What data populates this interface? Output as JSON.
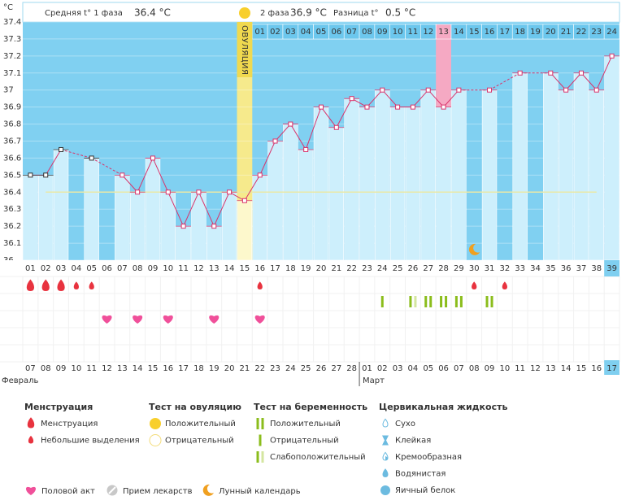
{
  "header": {
    "phase1_label": "Средняя t° 1 фаза",
    "phase1_value": "36.4 °C",
    "phase2_label": "2 фаза",
    "phase2_value": "36.9 °C",
    "diff_label": "Разница t°",
    "diff_value": "0.5 °C"
  },
  "chart_data": {
    "type": "line",
    "y_unit": "°C",
    "categories": [
      "01",
      "02",
      "03",
      "04",
      "05",
      "06",
      "07",
      "08",
      "09",
      "10",
      "11",
      "12",
      "13",
      "14",
      "15",
      "16",
      "17",
      "18",
      "19",
      "20",
      "21",
      "22",
      "23",
      "24",
      "25",
      "26",
      "27",
      "28",
      "29",
      "30",
      "31",
      "32",
      "33",
      "34",
      "35",
      "36",
      "37",
      "38",
      "39"
    ],
    "values": [
      36.5,
      36.5,
      36.65,
      null,
      36.6,
      null,
      36.5,
      36.4,
      36.6,
      36.4,
      36.2,
      36.4,
      36.2,
      36.4,
      36.35,
      36.5,
      36.7,
      36.8,
      36.65,
      36.9,
      36.78,
      36.95,
      36.9,
      37.0,
      36.9,
      36.9,
      37.0,
      36.9,
      37.0,
      null,
      37.0,
      null,
      37.1,
      null,
      37.1,
      37.0,
      37.1,
      37.0,
      37.2
    ],
    "color": "#d9336b",
    "ylim": [
      36,
      37.4
    ],
    "yticks": [
      36,
      36.1,
      36.2,
      36.3,
      36.4,
      36.5,
      36.6,
      36.7,
      36.8,
      36.9,
      37,
      37.1,
      37.2,
      37.3,
      37.4
    ],
    "grid": true,
    "coverline": 36.4,
    "ovulation": {
      "day": "15",
      "label": "ОВУЛЯЦИЯ"
    },
    "phase2_days": [
      "01",
      "02",
      "03",
      "04",
      "05",
      "06",
      "07",
      "08",
      "09",
      "10",
      "11",
      "12",
      "13",
      "14",
      "15",
      "16",
      "17",
      "18",
      "19",
      "20",
      "21",
      "22",
      "23",
      "24"
    ],
    "highlight_phase2_day": "13",
    "current_day": "39"
  },
  "markers": {
    "menstruation": [
      {
        "day": "01",
        "size": "heavy"
      },
      {
        "day": "02",
        "size": "heavy"
      },
      {
        "day": "03",
        "size": "heavy"
      },
      {
        "day": "04",
        "size": "light"
      },
      {
        "day": "05",
        "size": "light"
      },
      {
        "day": "16",
        "size": "light"
      },
      {
        "day": "30",
        "size": "light"
      },
      {
        "day": "32",
        "size": "light"
      }
    ],
    "pregnancy_tests": [
      {
        "day": "24",
        "result": "negative"
      },
      {
        "day": "26",
        "result": "weak"
      },
      {
        "day": "27",
        "result": "positive"
      },
      {
        "day": "28",
        "result": "positive"
      },
      {
        "day": "29",
        "result": "positive"
      },
      {
        "day": "31",
        "result": "positive"
      }
    ],
    "sex": [
      "06",
      "08",
      "10",
      "13",
      "16"
    ],
    "moon": [
      "30"
    ]
  },
  "calendar": [
    {
      "month": "Февраль",
      "dates": [
        {
          "label": "07",
          "weekend": true
        },
        {
          "label": "08",
          "weekend": true
        },
        {
          "label": "09",
          "weekend": false
        },
        {
          "label": "10",
          "weekend": false
        },
        {
          "label": "11",
          "weekend": false
        },
        {
          "label": "12",
          "weekend": false
        },
        {
          "label": "13",
          "weekend": false
        },
        {
          "label": "14",
          "weekend": true
        },
        {
          "label": "15",
          "weekend": true
        },
        {
          "label": "16",
          "weekend": false
        },
        {
          "label": "17",
          "weekend": false
        },
        {
          "label": "18",
          "weekend": false
        },
        {
          "label": "19",
          "weekend": false
        },
        {
          "label": "20",
          "weekend": false
        },
        {
          "label": "21",
          "weekend": true
        },
        {
          "label": "22",
          "weekend": true
        },
        {
          "label": "23",
          "weekend": false
        },
        {
          "label": "24",
          "weekend": false
        },
        {
          "label": "25",
          "weekend": false
        },
        {
          "label": "26",
          "weekend": false
        },
        {
          "label": "27",
          "weekend": false
        },
        {
          "label": "28",
          "weekend": true
        }
      ]
    },
    {
      "month": "Март",
      "dates": [
        {
          "label": "01",
          "weekend": true
        },
        {
          "label": "02",
          "weekend": false
        },
        {
          "label": "03",
          "weekend": false
        },
        {
          "label": "04",
          "weekend": false
        },
        {
          "label": "05",
          "weekend": false
        },
        {
          "label": "06",
          "weekend": false
        },
        {
          "label": "07",
          "weekend": true
        },
        {
          "label": "08",
          "weekend": true
        },
        {
          "label": "09",
          "weekend": false
        },
        {
          "label": "10",
          "weekend": false
        },
        {
          "label": "11",
          "weekend": false
        },
        {
          "label": "12",
          "weekend": false
        },
        {
          "label": "13",
          "weekend": false
        },
        {
          "label": "14",
          "weekend": true
        },
        {
          "label": "15",
          "weekend": true
        },
        {
          "label": "16",
          "weekend": false
        },
        {
          "label": "17",
          "weekend": false
        }
      ]
    }
  ],
  "legend": {
    "sections": [
      {
        "title": "Менструация",
        "items": [
          "Менструация",
          "Небольшие выделения"
        ]
      },
      {
        "title": "Тест на овуляцию",
        "items": [
          "Положительный",
          "Отрицательный"
        ]
      },
      {
        "title": "Тест на беременность",
        "items": [
          "Положительный",
          "Отрицательный",
          "Слабоположительный"
        ]
      },
      {
        "title": "Цервикальная жидкость",
        "items": [
          "Сухо",
          "Клейкая",
          "Кремообразная",
          "Водянистая",
          "Яичный белок"
        ]
      }
    ],
    "other": [
      "Половой акт",
      "Прием лекарств",
      "Лунный календарь"
    ]
  }
}
